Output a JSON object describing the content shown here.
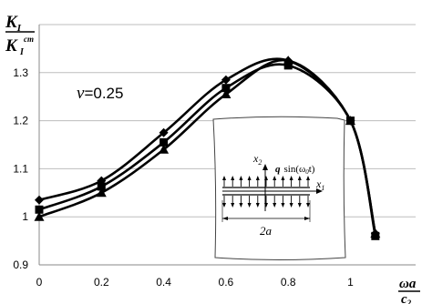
{
  "chart_data": {
    "type": "line",
    "title": "",
    "ylabel": {
      "main": "K",
      "sub": "I",
      "den_main": "K",
      "den_sub": "I",
      "den_sup": "ст"
    },
    "xlabel": {
      "num": "ωa",
      "den": "c",
      "den_sub": "2"
    },
    "annotation": {
      "symbol": "ν",
      "text": "=0.25"
    },
    "xlim": [
      0,
      1.08
    ],
    "ylim": [
      0.9,
      1.4
    ],
    "x_ticks": [
      "0",
      "0.2",
      "0.4",
      "0.6",
      "0.8",
      "1"
    ],
    "y_ticks": [
      "0.9",
      "1",
      "1.1",
      "1.2",
      "1.3"
    ],
    "x_tick_values": [
      0,
      0.2,
      0.4,
      0.6,
      0.8,
      1.0
    ],
    "y_tick_values": [
      0.9,
      1.0,
      1.1,
      1.2,
      1.3
    ],
    "grid": "horizontal",
    "legend": "none",
    "x": [
      0,
      0.2,
      0.4,
      0.6,
      0.8,
      1.0,
      1.08
    ],
    "series": [
      {
        "marker": "diamond",
        "values": [
          1.035,
          1.075,
          1.175,
          1.285,
          1.325,
          1.2,
          0.965
        ]
      },
      {
        "marker": "square",
        "values": [
          1.015,
          1.063,
          1.155,
          1.268,
          1.315,
          1.2,
          0.96
        ]
      },
      {
        "marker": "triangle",
        "values": [
          1.0,
          1.05,
          1.14,
          1.255,
          1.325,
          1.2,
          0.965
        ]
      }
    ]
  },
  "inset": {
    "x2_label": "x",
    "x2_sub": "2",
    "x1_label": "x",
    "x1_sub": "1",
    "load_q": "q",
    "load_fn": "sin(ω",
    "load_sub": "0",
    "load_end": "t)",
    "crack_label": "2a"
  }
}
